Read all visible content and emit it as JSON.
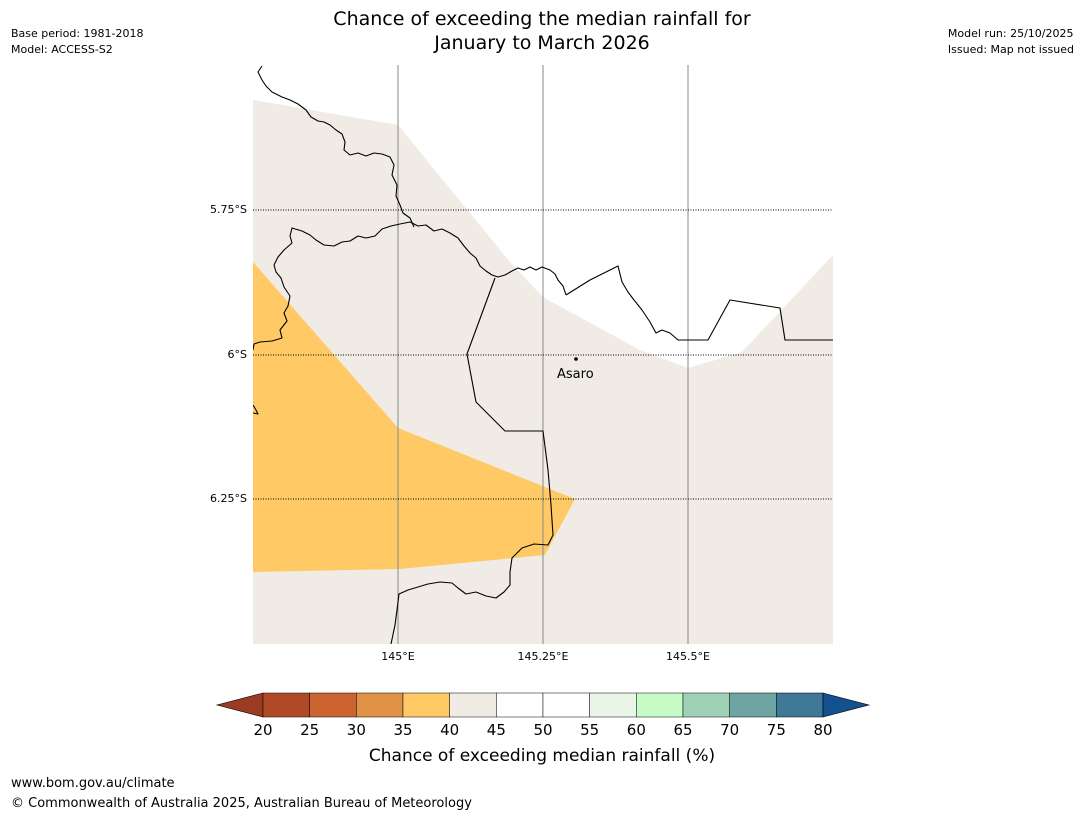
{
  "header": {
    "title_line1": "Chance of exceeding the median rainfall for",
    "title_line2": "January to March 2026",
    "base_period": "Base period: 1981-2018",
    "model": "Model: ACCESS-S2",
    "model_run": "Model run: 25/10/2025",
    "issued": "Issued: Map not issued"
  },
  "map": {
    "latitude_labels": [
      "5.75°S",
      "6°S",
      "6.25°S"
    ],
    "longitude_labels": [
      "145°E",
      "145.25°E",
      "145.5°E"
    ],
    "place": {
      "name": "Asaro"
    },
    "colors": {
      "neutral_band": "#f0ebe5",
      "below_band": "#ffca66",
      "outside": "#ffffff",
      "border": "#000000",
      "meridian": "#888888"
    }
  },
  "legend": {
    "title": "Chance of exceeding median rainfall (%)",
    "tick_labels": [
      "20",
      "25",
      "30",
      "35",
      "40",
      "45",
      "50",
      "55",
      "60",
      "65",
      "70",
      "75",
      "80"
    ],
    "colors": {
      "below_20": "#9c3b24",
      "bands": [
        "#b04a26",
        "#cb6430",
        "#e09246",
        "#ffca66",
        "#f0ebe5",
        "#ffffff",
        "#ffffff",
        "#e9f5e6",
        "#c6fac6",
        "#9fd1b7",
        "#6fa4a5",
        "#417898"
      ],
      "above_80": "#12508e"
    }
  },
  "footer": {
    "url": "www.bom.gov.au/climate",
    "copyright": "© Commonwealth of Australia 2025, Australian Bureau of Meteorology"
  }
}
